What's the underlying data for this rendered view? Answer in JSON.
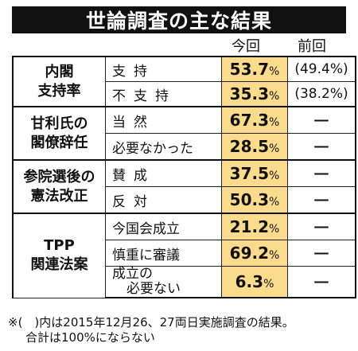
{
  "title": "世論調査の主な結果",
  "headers": {
    "now": "今回",
    "prev": "前回"
  },
  "groups": [
    {
      "category": [
        "内閣",
        "支持率"
      ],
      "rows": [
        {
          "option": "支持",
          "now": "53.7",
          "prev": "(49.4%)"
        },
        {
          "option": "不支持",
          "now": "35.3",
          "prev": "(38.2%)"
        }
      ]
    },
    {
      "category": [
        "甘利氏の",
        "閣僚辞任"
      ],
      "rows": [
        {
          "option": "当然",
          "now": "67.3",
          "prev": "ー"
        },
        {
          "option": "必要なかった",
          "now": "28.5",
          "prev": "ー"
        }
      ]
    },
    {
      "category": [
        "参院選後の",
        "憲法改正"
      ],
      "rows": [
        {
          "option": "賛成",
          "now": "37.5",
          "prev": "ー"
        },
        {
          "option": "反対",
          "now": "50.3",
          "prev": "ー"
        }
      ]
    },
    {
      "category": [
        "TPP",
        "関連法案"
      ],
      "rows": [
        {
          "option": "今国会成立",
          "now": "21.2",
          "prev": "ー"
        },
        {
          "option": "慎重に審議",
          "now": "69.2",
          "prev": "ー"
        },
        {
          "option": [
            "成立の",
            "必要ない"
          ],
          "now": "6.3",
          "prev": "ー"
        }
      ]
    }
  ],
  "pct_unit": "%",
  "footnote": [
    "※(　)内は2015年12月26、27両日実施調査の結果。",
    "合計は100%にならない"
  ]
}
